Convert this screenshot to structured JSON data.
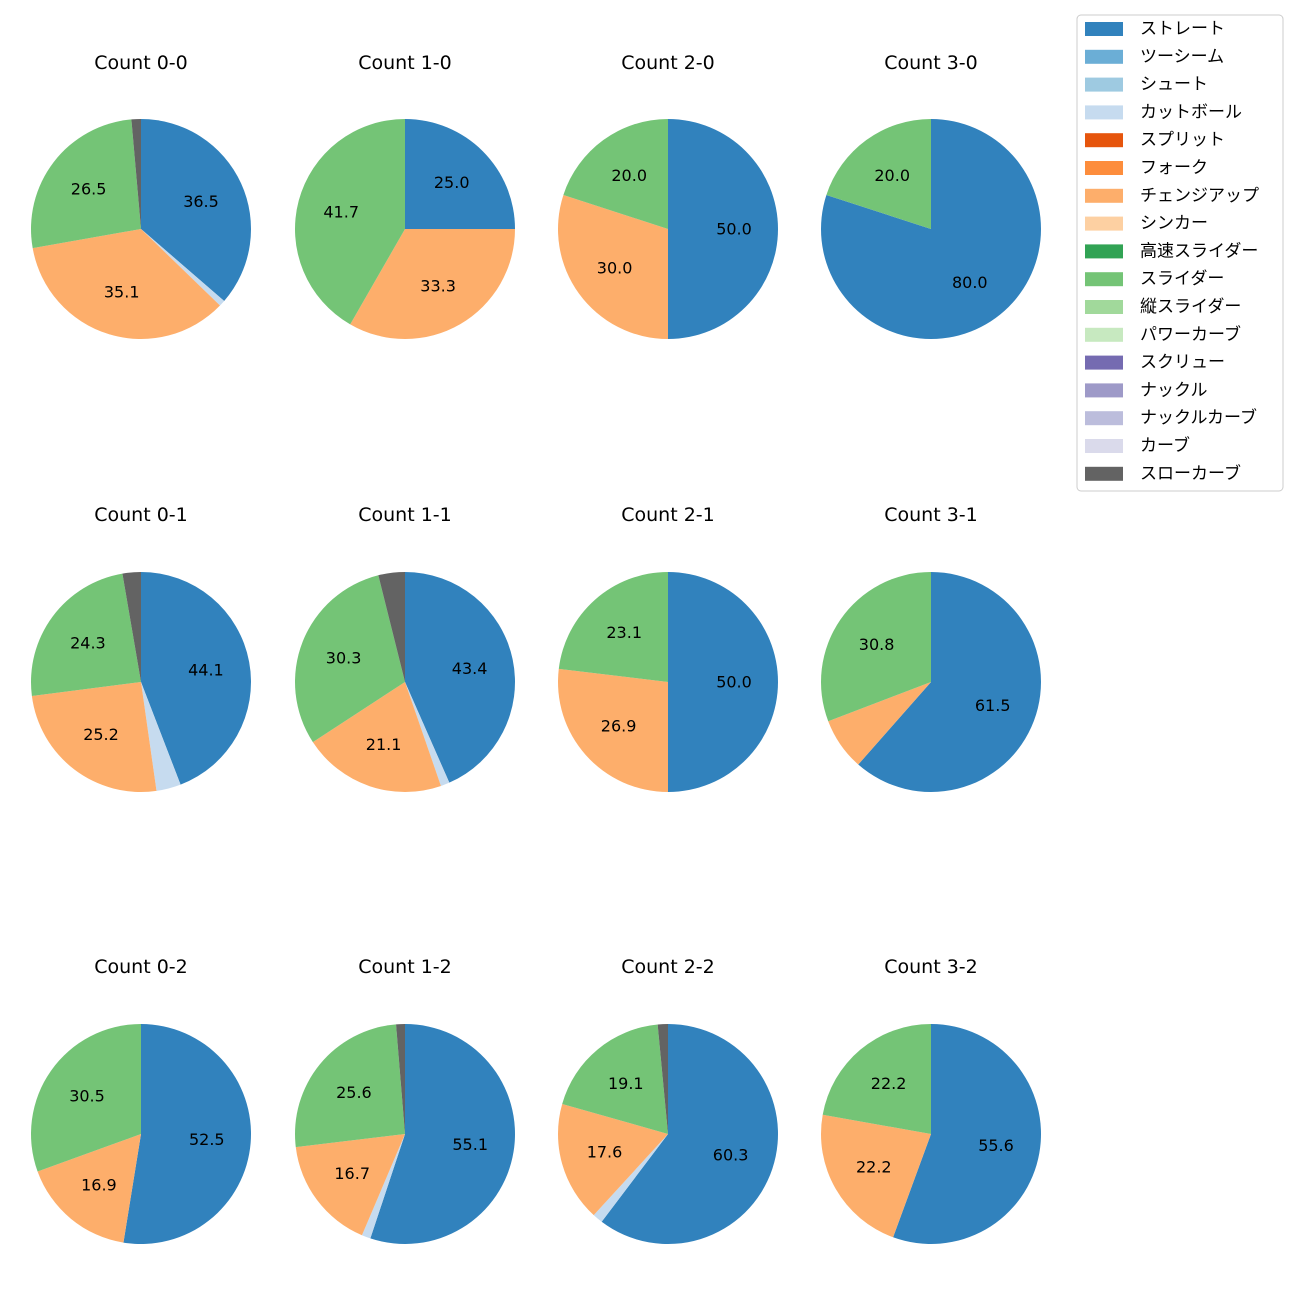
{
  "chart_data": {
    "type": "pie",
    "legend_position": "top-right",
    "categories": [
      "ストレート",
      "ツーシーム",
      "シュート",
      "カットボール",
      "スプリット",
      "フォーク",
      "チェンジアップ",
      "シンカー",
      "高速スライダー",
      "スライダー",
      "縦スライダー",
      "パワーカーブ",
      "スクリュー",
      "ナックル",
      "ナックルカーブ",
      "カーブ",
      "スローカーブ"
    ],
    "colors": [
      "#3182bd",
      "#6baed6",
      "#9ecae1",
      "#c6dbef",
      "#e6550d",
      "#fd8d3c",
      "#fdae6b",
      "#fdd0a2",
      "#31a354",
      "#74c476",
      "#a1d99b",
      "#c7e9c0",
      "#756bb1",
      "#9e9ac8",
      "#bcbddc",
      "#dadaeb",
      "#636363"
    ],
    "charts": [
      {
        "title": "Count 0-0",
        "values": {
          "ストレート": 36.5,
          "カットボール": 0.9,
          "チェンジアップ": 35.1,
          "スライダー": 26.5,
          "スローカーブ": 1.4
        }
      },
      {
        "title": "Count 1-0",
        "values": {
          "ストレート": 25.0,
          "チェンジアップ": 33.3,
          "スライダー": 41.7
        }
      },
      {
        "title": "Count 2-0",
        "values": {
          "ストレート": 50.0,
          "チェンジアップ": 30.0,
          "スライダー": 20.0
        }
      },
      {
        "title": "Count 3-0",
        "values": {
          "ストレート": 80.0,
          "スライダー": 20.0
        }
      },
      {
        "title": "Count 0-1",
        "values": {
          "ストレート": 44.1,
          "カットボール": 3.6,
          "チェンジアップ": 25.2,
          "スライダー": 24.3,
          "スローカーブ": 2.7
        }
      },
      {
        "title": "Count 1-1",
        "values": {
          "ストレート": 43.4,
          "カットボール": 1.3,
          "チェンジアップ": 21.1,
          "スライダー": 30.3,
          "スローカーブ": 3.9
        }
      },
      {
        "title": "Count 2-1",
        "values": {
          "ストレート": 50.0,
          "チェンジアップ": 26.9,
          "スライダー": 23.1
        }
      },
      {
        "title": "Count 3-1",
        "values": {
          "ストレート": 61.5,
          "チェンジアップ": 7.7,
          "スライダー": 30.8
        }
      },
      {
        "title": "Count 0-2",
        "values": {
          "ストレート": 52.5,
          "チェンジアップ": 16.9,
          "スライダー": 30.5
        }
      },
      {
        "title": "Count 1-2",
        "values": {
          "ストレート": 55.1,
          "カットボール": 1.3,
          "チェンジアップ": 16.7,
          "スライダー": 25.6,
          "スローカーブ": 1.3
        }
      },
      {
        "title": "Count 2-2",
        "values": {
          "ストレート": 60.3,
          "カットボール": 1.5,
          "チェンジアップ": 17.6,
          "スライダー": 19.1,
          "スローカーブ": 1.5
        }
      },
      {
        "title": "Count 3-2",
        "values": {
          "ストレート": 55.6,
          "チェンジアップ": 22.2,
          "スライダー": 22.2
        }
      }
    ]
  }
}
